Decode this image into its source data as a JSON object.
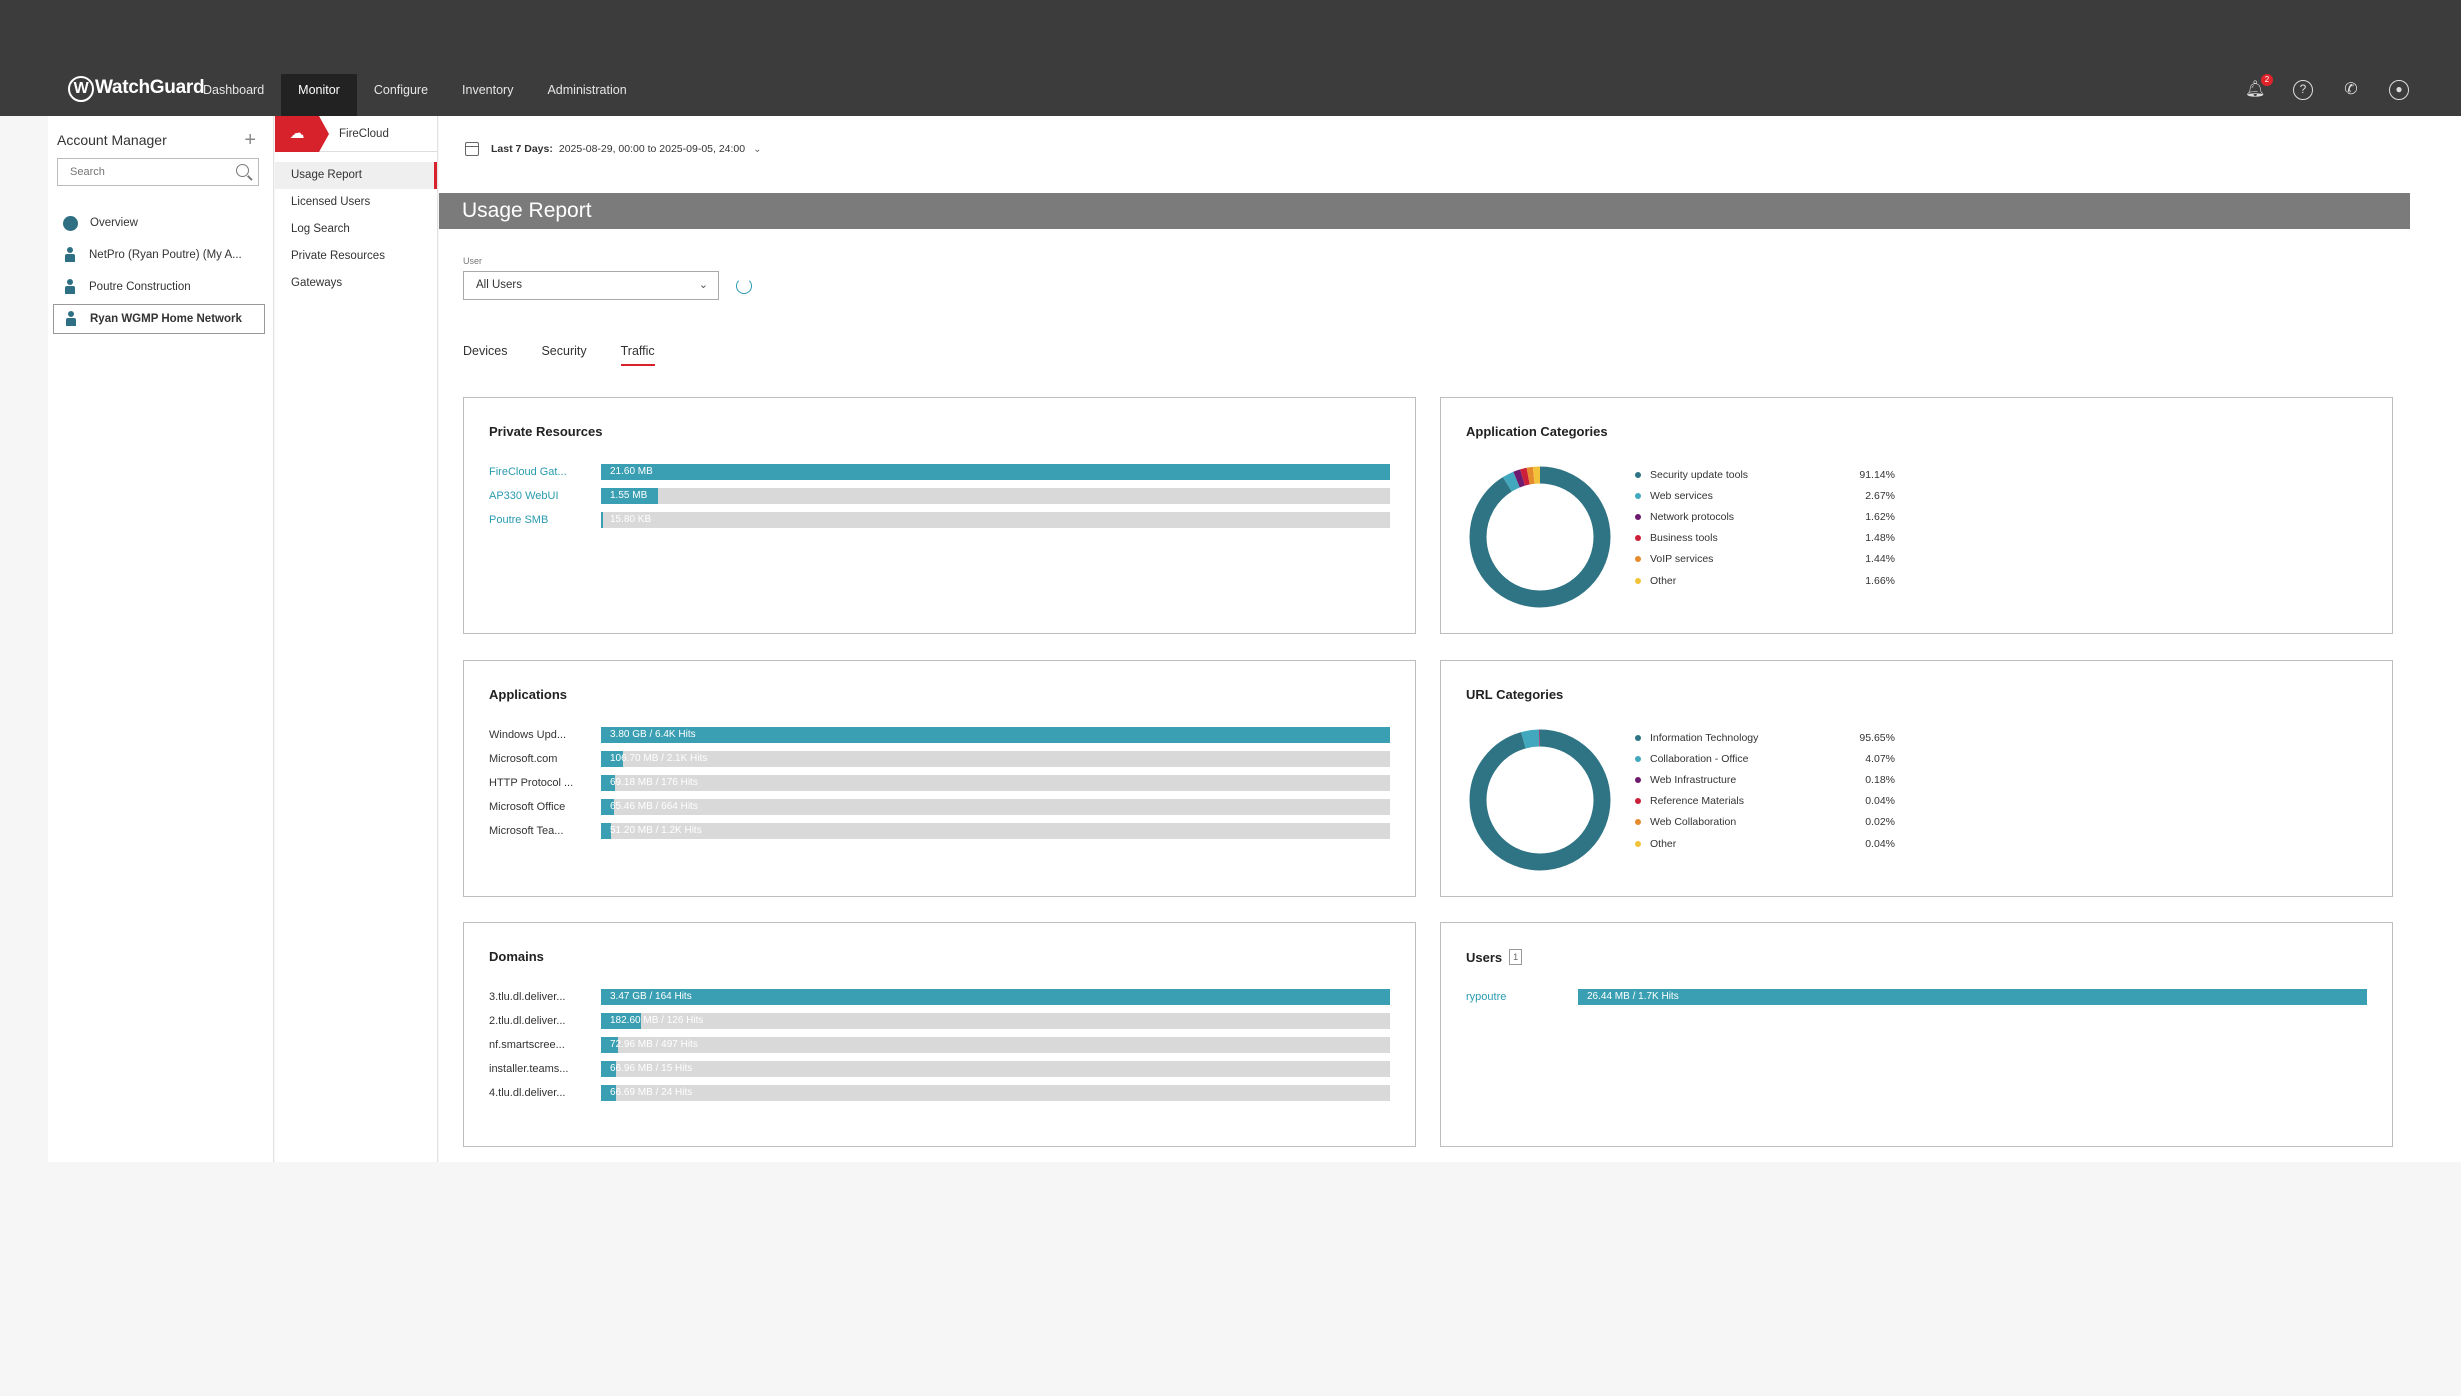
{
  "app": {
    "logo_text": "WatchGuard"
  },
  "nav": {
    "items": [
      "Dashboard",
      "Monitor",
      "Configure",
      "Inventory",
      "Administration"
    ],
    "active": "Monitor"
  },
  "top_icons": {
    "notifications_count": "2"
  },
  "account_manager": {
    "title": "Account Manager",
    "search_placeholder": "Search",
    "items": [
      {
        "label": "Overview",
        "icon": "user-icon"
      },
      {
        "label": "NetPro (Ryan Poutre) (My A...",
        "icon": "site-icon"
      },
      {
        "label": "Poutre Construction",
        "icon": "site-icon"
      },
      {
        "label": "Ryan WGMP Home Network",
        "icon": "site-icon",
        "selected": true
      }
    ]
  },
  "subnav": {
    "header": "FireCloud",
    "items": [
      "Usage Report",
      "Licensed Users",
      "Log Search",
      "Private Resources",
      "Gateways"
    ],
    "active": "Usage Report"
  },
  "main": {
    "date_range_label": "Last 7 Days:",
    "date_range_value": "2025-08-29, 00:00 to 2025-09-05, 24:00",
    "page_title": "Usage Report",
    "user_label": "User",
    "user_value": "All Users",
    "tabs": [
      "Devices",
      "Security",
      "Traffic"
    ],
    "active_tab": "Traffic"
  },
  "cards": {
    "private_resources": {
      "title": "Private Resources",
      "rows": [
        {
          "label": "FireCloud Gat...",
          "text": "21.60 MB",
          "fraction": 1.0
        },
        {
          "label": "AP330 WebUI",
          "text": "1.55 MB",
          "fraction": 0.072
        },
        {
          "label": "Poutre SMB",
          "text": "15.80 KB",
          "fraction": 0.002
        }
      ]
    },
    "applications": {
      "title": "Applications",
      "rows": [
        {
          "label": "Windows Upd...",
          "text": "3.80 GB / 6.4K Hits",
          "fraction": 1.0
        },
        {
          "label": "Microsoft.com",
          "text": "106.70 MB / 2.1K Hits",
          "fraction": 0.028
        },
        {
          "label": "HTTP Protocol ...",
          "text": "69.18 MB / 176 Hits",
          "fraction": 0.018
        },
        {
          "label": "Microsoft Office",
          "text": "65.46 MB / 664 Hits",
          "fraction": 0.017
        },
        {
          "label": "Microsoft Tea...",
          "text": "51.20 MB / 1.2K Hits",
          "fraction": 0.013
        }
      ]
    },
    "domains": {
      "title": "Domains",
      "rows": [
        {
          "label": "3.tlu.dl.deliver...",
          "text": "3.47 GB / 164 Hits",
          "fraction": 1.0
        },
        {
          "label": "2.tlu.dl.deliver...",
          "text": "182.60 MB / 126 Hits",
          "fraction": 0.051
        },
        {
          "label": "nf.smartscree...",
          "text": "72.96 MB / 497 Hits",
          "fraction": 0.021
        },
        {
          "label": "installer.teams...",
          "text": "66.96 MB / 15 Hits",
          "fraction": 0.019
        },
        {
          "label": "4.tlu.dl.deliver...",
          "text": "66.69 MB / 24 Hits",
          "fraction": 0.019
        }
      ]
    },
    "users": {
      "title": "Users",
      "count": "1",
      "rows": [
        {
          "label": "rypoutre",
          "text": "26.44 MB / 1.7K Hits",
          "fraction": 1.0
        }
      ]
    },
    "application_categories": {
      "title": "Application Categories",
      "chart_data": {
        "type": "pie",
        "categories": [
          "Security update tools",
          "Web services",
          "Network protocols",
          "Business tools",
          "VoIP services",
          "Other"
        ],
        "values": [
          91.14,
          2.67,
          1.62,
          1.48,
          1.44,
          1.66
        ],
        "value_labels": [
          "91.14%",
          "2.67%",
          "1.62%",
          "1.48%",
          "1.44%",
          "1.66%"
        ],
        "colors": [
          "#2f7484",
          "#41a8bd",
          "#6e1a6e",
          "#cc1f3a",
          "#e68a2e",
          "#f2c23a"
        ],
        "legend": "right"
      }
    },
    "url_categories": {
      "title": "URL Categories",
      "chart_data": {
        "type": "pie",
        "categories": [
          "Information Technology",
          "Collaboration - Office",
          "Web Infrastructure",
          "Reference Materials",
          "Web Collaboration",
          "Other"
        ],
        "values": [
          95.65,
          4.07,
          0.18,
          0.04,
          0.02,
          0.04
        ],
        "value_labels": [
          "95.65%",
          "4.07%",
          "0.18%",
          "0.04%",
          "0.02%",
          "0.04%"
        ],
        "colors": [
          "#2f7484",
          "#41a8bd",
          "#6e1a6e",
          "#cc1f3a",
          "#e68a2e",
          "#f2c23a"
        ],
        "legend": "right"
      }
    }
  }
}
